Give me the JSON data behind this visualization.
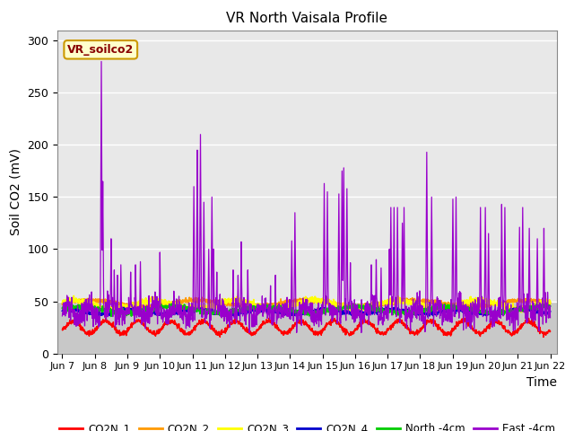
{
  "title": "VR North Vaisala Profile",
  "ylabel": "Soil CO2 (mV)",
  "xlabel": "Time",
  "annotation": "VR_soilco2",
  "ylim": [
    0,
    310
  ],
  "yticks": [
    0,
    50,
    100,
    150,
    200,
    250,
    300
  ],
  "x_tick_labels": [
    "Jun 7",
    "Jun 8",
    "Jun 9",
    "Jun 10",
    "Jun 11",
    "Jun 12",
    "Jun 13",
    "Jun 14",
    "Jun 15",
    "Jun 16",
    "Jun 17",
    "Jun 18",
    "Jun 19",
    "Jun 20",
    "Jun 21",
    "Jun 22"
  ],
  "x_tick_positions": [
    0,
    1,
    2,
    3,
    4,
    5,
    6,
    7,
    8,
    9,
    10,
    11,
    12,
    13,
    14,
    15
  ],
  "colors": {
    "CO2N_1": "#ff0000",
    "CO2N_2": "#ff9900",
    "CO2N_3": "#ffff00",
    "CO2N_4": "#0000cc",
    "North_4cm": "#00cc00",
    "East_4cm": "#9900cc"
  },
  "plot_bg_upper": "#e8e8e8",
  "plot_bg_lower": "#c8c8c8",
  "band_lower": 50,
  "annotation_bg": "#ffffcc",
  "annotation_border": "#cc9900",
  "annotation_text_color": "#880000",
  "fig_bg": "#ffffff",
  "grid_color": "#ffffff",
  "spine_color": "#888888"
}
